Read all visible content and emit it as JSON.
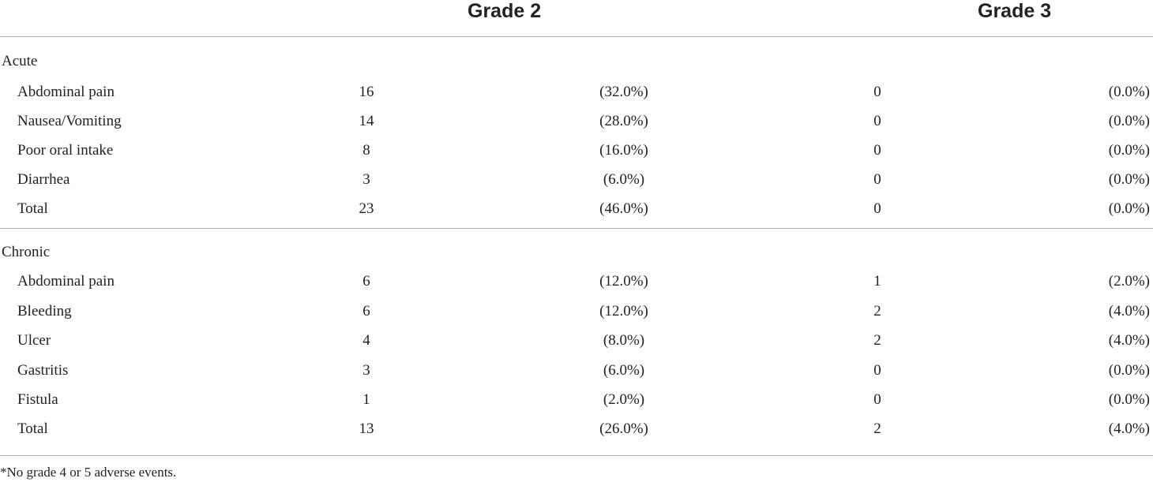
{
  "table": {
    "headers": {
      "grade2": "Grade 2",
      "grade3": "Grade 3"
    },
    "sections": [
      {
        "name": "Acute",
        "rows": [
          {
            "label": "Abdominal pain",
            "g2_n": "16",
            "g2_pct": "(32.0%)",
            "g3_n": "0",
            "g3_pct": "(0.0%)"
          },
          {
            "label": "Nausea/Vomiting",
            "g2_n": "14",
            "g2_pct": "(28.0%)",
            "g3_n": "0",
            "g3_pct": "(0.0%)"
          },
          {
            "label": "Poor oral intake",
            "g2_n": "8",
            "g2_pct": "(16.0%)",
            "g3_n": "0",
            "g3_pct": "(0.0%)"
          },
          {
            "label": "Diarrhea",
            "g2_n": "3",
            "g2_pct": "(6.0%)",
            "g3_n": "0",
            "g3_pct": "(0.0%)"
          },
          {
            "label": "Total",
            "g2_n": "23",
            "g2_pct": "(46.0%)",
            "g3_n": "0",
            "g3_pct": "(0.0%)"
          }
        ]
      },
      {
        "name": "Chronic",
        "rows": [
          {
            "label": "Abdominal pain",
            "g2_n": "6",
            "g2_pct": "(12.0%)",
            "g3_n": "1",
            "g3_pct": "(2.0%)"
          },
          {
            "label": "Bleeding",
            "g2_n": "6",
            "g2_pct": "(12.0%)",
            "g3_n": "2",
            "g3_pct": "(4.0%)"
          },
          {
            "label": "Ulcer",
            "g2_n": "4",
            "g2_pct": "(8.0%)",
            "g3_n": "2",
            "g3_pct": "(4.0%)"
          },
          {
            "label": "Gastritis",
            "g2_n": "3",
            "g2_pct": "(6.0%)",
            "g3_n": "0",
            "g3_pct": "(0.0%)"
          },
          {
            "label": "Fistula",
            "g2_n": "1",
            "g2_pct": "(2.0%)",
            "g3_n": "0",
            "g3_pct": "(0.0%)"
          },
          {
            "label": "Total",
            "g2_n": "13",
            "g2_pct": "(26.0%)",
            "g3_n": "2",
            "g3_pct": "(4.0%)"
          }
        ]
      }
    ],
    "footnote": "*No grade 4 or 5 adverse events."
  }
}
